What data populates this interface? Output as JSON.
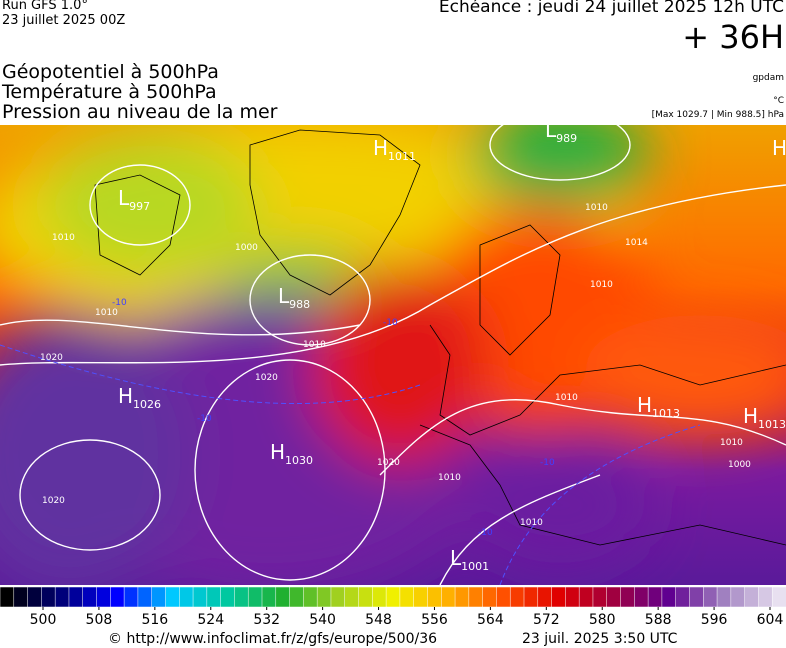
{
  "header": {
    "run": "Run GFS 1.0°",
    "run_date": "23 juillet 2025 00Z",
    "valid": "Echéance : jeudi 24 juillet 2025 12h UTC",
    "lead": "+ 36H"
  },
  "fields": {
    "line1": "Géopotentiel à 500hPa",
    "line2": "Température à 500hPa",
    "line3": "Pression au niveau de la mer",
    "unit1": "gpdam",
    "unit2": "°C",
    "unit3": "[Max 1029.7 | Min 988.5] hPa"
  },
  "pressure_centers": [
    {
      "type": "L",
      "value": "997"
    },
    {
      "type": "L",
      "value": "988"
    },
    {
      "type": "L",
      "value": "989"
    },
    {
      "type": "H",
      "value": "1011"
    },
    {
      "type": "H"
    },
    {
      "type": "H",
      "value": "1026"
    },
    {
      "type": "H",
      "value": "1030"
    },
    {
      "type": "H",
      "value": "1013"
    },
    {
      "type": "H",
      "value": "1013"
    },
    {
      "type": "L",
      "value": "1001"
    }
  ],
  "isobar_labels": [
    "1010",
    "1000",
    "1010",
    "1010",
    "1020",
    "1020",
    "1020",
    "1010",
    "1014",
    "1010",
    "1010",
    "1010",
    "1000",
    "1010",
    "1010",
    "1020"
  ],
  "temperature_labels": [
    "-10",
    "-10",
    "-10",
    "-10",
    "-10"
  ],
  "colorbar": {
    "ticks": [
      500,
      508,
      516,
      524,
      532,
      540,
      548,
      556,
      564,
      572,
      580,
      588,
      596,
      604
    ],
    "colors": [
      "#000000",
      "#00007a",
      "#0000ff",
      "#00c8ff",
      "#00c8a0",
      "#20b030",
      "#a0d020",
      "#f0f000",
      "#ffb000",
      "#ff5000",
      "#e00000",
      "#a00040",
      "#600090",
      "#a080c0",
      "#e8e0f0"
    ]
  },
  "footer": {
    "url": "© http://www.infoclimat.fr/z/gfs/europe/500/36",
    "generated": "23 juil. 2025  3:50 UTC"
  }
}
